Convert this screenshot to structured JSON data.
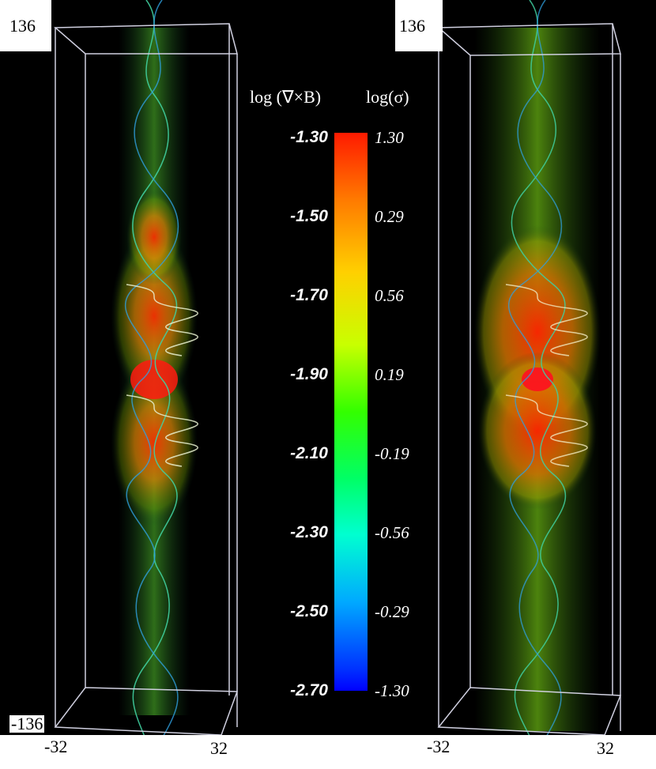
{
  "left_panel": {
    "z_top": "136",
    "z_bottom": "-136",
    "x_left": "-32",
    "x_right": "32"
  },
  "right_panel": {
    "z_top": "136",
    "x_left": "-32",
    "x_right": "32"
  },
  "colorbar": {
    "title_left": "log (∇×B)",
    "title_right": "log(σ)",
    "left_ticks": [
      "-1.30",
      "-1.50",
      "-1.70",
      "-1.90",
      "-2.10",
      "-2.30",
      "-2.50",
      "-2.70"
    ],
    "right_ticks": [
      "1.30",
      "0.29",
      "0.56",
      "0.19",
      "-0.19",
      "-0.56",
      "-0.29",
      "-1.30"
    ],
    "colors": [
      "#ff1a00",
      "#ffd000",
      "#33ff00",
      "#00ffd0",
      "#0000ff"
    ]
  }
}
